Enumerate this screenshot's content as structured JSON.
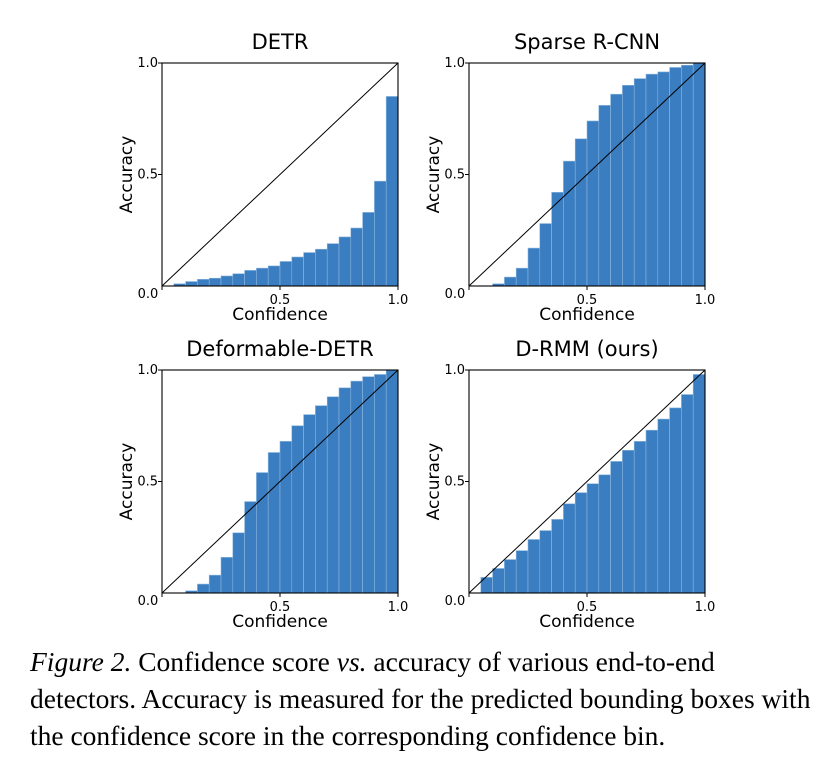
{
  "chart_data": [
    {
      "type": "bar",
      "title": "DETR",
      "xlabel": "Confidence",
      "ylabel": "Accuracy",
      "xlim": [
        0,
        1
      ],
      "ylim": [
        0,
        1
      ],
      "xticks": [
        "0.0",
        "0.5",
        "1.0"
      ],
      "yticks": [
        "0.5",
        "1.0"
      ],
      "bin_width": 0.05,
      "values": [
        0.0,
        0.01,
        0.02,
        0.03,
        0.035,
        0.045,
        0.055,
        0.07,
        0.08,
        0.09,
        0.11,
        0.13,
        0.15,
        0.165,
        0.19,
        0.22,
        0.26,
        0.33,
        0.47,
        0.85
      ],
      "diagonal": true
    },
    {
      "type": "bar",
      "title": "Sparse R-CNN",
      "xlabel": "Confidence",
      "ylabel": "Accuracy",
      "xlim": [
        0,
        1
      ],
      "ylim": [
        0,
        1
      ],
      "xticks": [
        "0.0",
        "0.5",
        "1.0"
      ],
      "yticks": [
        "0.5",
        "1.0"
      ],
      "bin_width": 0.05,
      "values": [
        0.0,
        0.0,
        0.01,
        0.04,
        0.08,
        0.17,
        0.28,
        0.42,
        0.56,
        0.66,
        0.74,
        0.81,
        0.86,
        0.9,
        0.93,
        0.95,
        0.96,
        0.98,
        0.99,
        1.0
      ],
      "diagonal": true
    },
    {
      "type": "bar",
      "title": "Deformable-DETR",
      "xlabel": "Confidence",
      "ylabel": "Accuracy",
      "xlim": [
        0,
        1
      ],
      "ylim": [
        0,
        1
      ],
      "xticks": [
        "0.0",
        "0.5",
        "1.0"
      ],
      "yticks": [
        "0.5",
        "1.0"
      ],
      "bin_width": 0.05,
      "values": [
        0.0,
        0.0,
        0.01,
        0.04,
        0.08,
        0.16,
        0.27,
        0.41,
        0.54,
        0.63,
        0.68,
        0.75,
        0.8,
        0.84,
        0.88,
        0.92,
        0.95,
        0.97,
        0.98,
        1.0
      ],
      "diagonal": true
    },
    {
      "type": "bar",
      "title": "D-RMM (ours)",
      "xlabel": "Confidence",
      "ylabel": "Accuracy",
      "xlim": [
        0,
        1
      ],
      "ylim": [
        0,
        1
      ],
      "xticks": [
        "0.0",
        "0.5",
        "1.0"
      ],
      "yticks": [
        "0.5",
        "1.0"
      ],
      "bin_width": 0.05,
      "values": [
        0.0,
        0.07,
        0.11,
        0.15,
        0.19,
        0.24,
        0.28,
        0.33,
        0.4,
        0.45,
        0.49,
        0.53,
        0.59,
        0.64,
        0.68,
        0.73,
        0.78,
        0.83,
        0.89,
        0.98
      ],
      "diagonal": true
    }
  ],
  "style": {
    "bar_color": "#3a7dc0",
    "bar_edge": "#8ab6e0",
    "axis_color": "#000000"
  },
  "caption": {
    "label": "Figure 2.",
    "part1": " Confidence score ",
    "vs": "vs.",
    "part2": " accuracy of various end-to-end detectors. Accuracy is measured for the predicted bounding boxes with the confidence score in the corresponding confidence bin."
  }
}
